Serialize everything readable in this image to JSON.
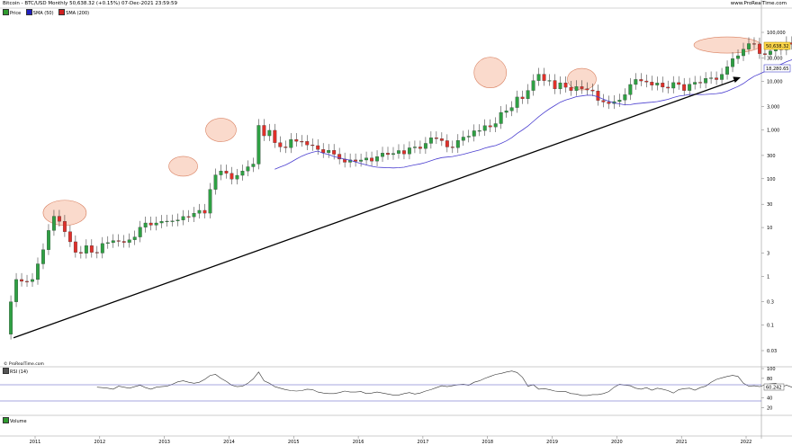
{
  "header": {
    "title": "Bitcoin - BTC/USD Monthly 50,638.32 (+0.15%) 07-Dec-2021 23:59:59",
    "site": "www.ProRealTime.com"
  },
  "price_legend": [
    {
      "label": "Price",
      "color": "#2e9b2e"
    },
    {
      "label": "SMA (50)",
      "color": "#2020c0"
    },
    {
      "label": "SMA (200)",
      "color": "#d02020"
    }
  ],
  "rsi_legend": {
    "label": "RSI (14)",
    "color": "#555555"
  },
  "volume_legend": {
    "label": "Volume",
    "color": "#2e9b2e"
  },
  "credit": "© ProRealTime.com",
  "price_tag": "50,638.32",
  "sma_tag": "18,280.65",
  "rsi_tag": "60.242",
  "chart_data": {
    "type": "candlestick",
    "scale": "log",
    "y_ticks": [
      {
        "label": "100,000",
        "value": 100000
      },
      {
        "label": "30,000",
        "value": 30000
      },
      {
        "label": "10,000",
        "value": 10000
      },
      {
        "label": "3,000",
        "value": 3000
      },
      {
        "label": "1,000",
        "value": 1000
      },
      {
        "label": "300",
        "value": 300
      },
      {
        "label": "100",
        "value": 100
      },
      {
        "label": "30",
        "value": 30
      },
      {
        "label": "10",
        "value": 10
      },
      {
        "label": "3",
        "value": 3
      },
      {
        "label": "1",
        "value": 1
      },
      {
        "label": "0.3",
        "value": 0.3
      },
      {
        "label": "0.1",
        "value": 0.1
      },
      {
        "label": "0.03",
        "value": 0.03
      }
    ],
    "x_ticks": [
      "2011",
      "2012",
      "2013",
      "2014",
      "2015",
      "2016",
      "2017",
      "2018",
      "2019",
      "2020",
      "2021",
      "2022"
    ],
    "x_tick_positions": [
      2011,
      2012,
      2013,
      2014,
      2015,
      2016,
      2017,
      2018,
      2019,
      2020,
      2021,
      2022
    ],
    "candles_monthly_close": [
      0.3,
      0.86,
      0.79,
      0.78,
      0.86,
      1.8,
      3.5,
      8.7,
      17,
      13.4,
      8.2,
      5.1,
      3.1,
      2.97,
      4.25,
      3.1,
      3.0,
      4.7,
      4.9,
      5.4,
      5.2,
      4.95,
      5.6,
      6.4,
      10.1,
      12.4,
      11.2,
      12.4,
      13.4,
      13.5,
      13.6,
      14.3,
      16.8,
      16.6,
      19.6,
      22.5,
      19.7,
      60.5,
      119.7,
      144.3,
      128.8,
      98.1,
      117.4,
      144.2,
      176,
      200,
      1240,
      759,
      983,
      548,
      449,
      432,
      638,
      584,
      582,
      494,
      477,
      398,
      341,
      382,
      318,
      253,
      218,
      243,
      227,
      242,
      266,
      230,
      284,
      335,
      313,
      330,
      378,
      322,
      430,
      448,
      416,
      531,
      693,
      663,
      603,
      448,
      432,
      609,
      714,
      745,
      962,
      970,
      1221,
      1154,
      1348,
      2286,
      2463,
      2880,
      4730,
      4360,
      6450,
      10260,
      13850,
      10270,
      10320,
      6940,
      9250,
      7490,
      6400,
      7730,
      7000,
      6600,
      6300,
      4030,
      3740,
      3460,
      3810,
      4090,
      5280,
      8550,
      10830,
      10090,
      9580,
      8290,
      9190,
      7550,
      7200,
      9350,
      8550,
      6420,
      8640,
      9480,
      9150,
      11350,
      11680,
      10780,
      13790,
      19700,
      28990,
      33140,
      45240,
      58800,
      57740,
      36680,
      35040,
      41500,
      47130,
      43820,
      61300,
      56950,
      50638
    ],
    "sma50_start_index": 49,
    "sma50_last": 18280.65,
    "highlight_circles": [
      "Jun-2011 peak",
      "Apr-2013 peak",
      "Nov-2013 peak",
      "Dec-2017 peak",
      "Jun-2019 peak",
      "2021 peaks"
    ],
    "trendline": {
      "from": {
        "date": "2010-08",
        "price": 0.055
      },
      "to": {
        "date": "2021-12",
        "price": 12000
      }
    },
    "rsi": {
      "y_ticks": [
        {
          "label": "100",
          "value": 100
        },
        {
          "label": "80",
          "value": 80
        },
        {
          "label": "40",
          "value": 40
        },
        {
          "label": "20",
          "value": 20
        }
      ],
      "overbought": 70,
      "oversold": 30,
      "values": [
        62,
        61,
        60,
        58,
        64,
        62,
        60,
        63,
        66,
        61,
        58,
        62,
        63,
        64,
        68,
        73,
        75,
        72,
        70,
        72,
        78,
        86,
        88,
        80,
        74,
        66,
        63,
        64,
        70,
        79,
        93,
        75,
        70,
        63,
        60,
        57,
        55,
        54,
        55,
        58,
        57,
        52,
        50,
        49,
        49,
        51,
        54,
        52,
        52,
        53,
        49,
        50,
        52,
        50,
        48,
        46,
        46,
        49,
        51,
        48,
        50,
        54,
        57,
        61,
        65,
        63,
        65,
        67,
        68,
        66,
        72,
        75,
        80,
        84,
        88,
        90,
        93,
        95,
        92,
        82,
        64,
        67,
        58,
        59,
        57,
        54,
        53,
        53,
        49,
        48,
        45,
        45,
        47,
        47,
        49,
        53,
        62,
        68,
        66,
        65,
        60,
        58,
        61,
        56,
        60,
        58,
        55,
        50,
        57,
        59,
        60,
        56,
        61,
        64,
        72,
        78,
        81,
        84,
        86,
        84,
        70,
        64,
        65,
        63,
        67,
        69,
        70,
        62,
        66,
        62,
        60
      ]
    }
  }
}
